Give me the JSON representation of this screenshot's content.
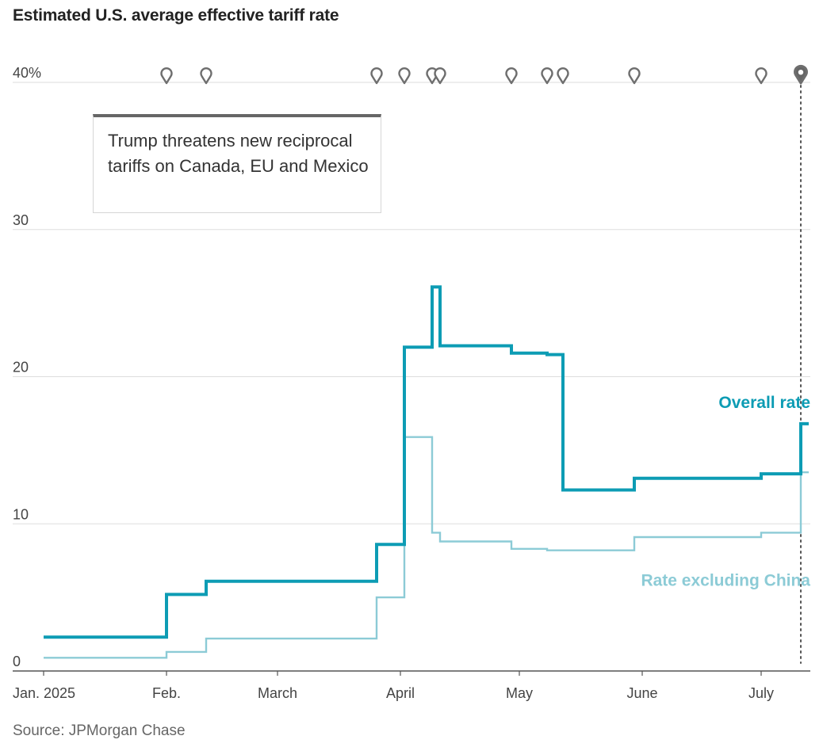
{
  "chart_data": {
    "type": "line",
    "title": "Estimated U.S. average effective tariff rate",
    "source": "Source: JPMorgan Chase",
    "x_tick_labels": [
      "Jan. 2025",
      "Feb.",
      "March",
      "April",
      "May",
      "June",
      "July"
    ],
    "x_ticks": [
      "2025-01-01",
      "2025-02-01",
      "2025-03-01",
      "2025-04-01",
      "2025-05-01",
      "2025-06-01",
      "2025-07-01"
    ],
    "xlim": [
      "2025-01-01",
      "2025-07-13"
    ],
    "y_ticks": [
      0,
      10,
      20,
      30,
      40
    ],
    "y_tick_labels": [
      "0",
      "10",
      "20",
      "30",
      "40%"
    ],
    "ylim": [
      0,
      40
    ],
    "grid": true,
    "step": true,
    "series": [
      {
        "name": "Overall rate",
        "color": "#0d9cb4",
        "points": [
          [
            "2025-01-01",
            2.3
          ],
          [
            "2025-02-01",
            5.2
          ],
          [
            "2025-02-11",
            6.1
          ],
          [
            "2025-03-26",
            8.6
          ],
          [
            "2025-04-02",
            22.0
          ],
          [
            "2025-04-09",
            26.1
          ],
          [
            "2025-04-11",
            22.1
          ],
          [
            "2025-04-29",
            21.6
          ],
          [
            "2025-05-08",
            21.5
          ],
          [
            "2025-05-12",
            12.3
          ],
          [
            "2025-05-30",
            13.1
          ],
          [
            "2025-07-01",
            13.4
          ],
          [
            "2025-07-11",
            16.8
          ],
          [
            "2025-07-13",
            16.8
          ]
        ]
      },
      {
        "name": "Rate excluding China",
        "color": "#8ccbd6",
        "points": [
          [
            "2025-01-01",
            0.9
          ],
          [
            "2025-02-01",
            1.3
          ],
          [
            "2025-02-11",
            2.2
          ],
          [
            "2025-03-26",
            5.0
          ],
          [
            "2025-04-02",
            15.9
          ],
          [
            "2025-04-09",
            9.4
          ],
          [
            "2025-04-11",
            8.8
          ],
          [
            "2025-04-29",
            8.3
          ],
          [
            "2025-05-08",
            8.2
          ],
          [
            "2025-05-30",
            9.1
          ],
          [
            "2025-07-01",
            9.4
          ],
          [
            "2025-07-11",
            13.5
          ],
          [
            "2025-07-13",
            13.5
          ]
        ]
      }
    ],
    "event_markers": [
      "2025-02-01",
      "2025-02-11",
      "2025-03-26",
      "2025-04-02",
      "2025-04-09",
      "2025-04-11",
      "2025-04-29",
      "2025-05-08",
      "2025-05-12",
      "2025-05-30",
      "2025-07-01",
      "2025-07-11"
    ],
    "selected_event": "2025-07-11",
    "annotation": {
      "text": "Trump threatens new reciprocal tariffs on Canada, EU and Mexico",
      "marker_icon": "map-pin-icon"
    }
  }
}
